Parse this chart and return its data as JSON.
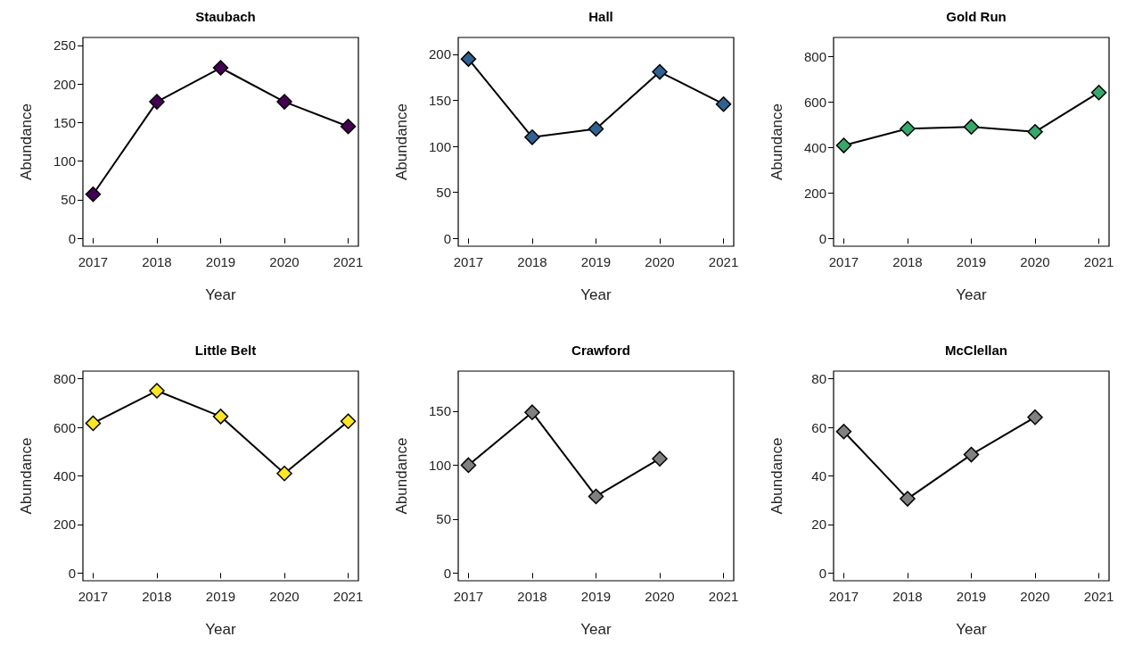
{
  "chart_data": [
    {
      "type": "line",
      "title": "Staubach",
      "xlabel": "Year",
      "ylabel": "Abundance",
      "x": [
        2017,
        2018,
        2019,
        2020,
        2021
      ],
      "xlim": [
        2016.84,
        2021.16
      ],
      "xticks": [
        2017,
        2018,
        2019,
        2020,
        2021
      ],
      "ylim": [
        -10.4,
        260.4
      ],
      "yticks": [
        0,
        50,
        100,
        150,
        200,
        250
      ],
      "marker": "diamond",
      "line_style": "solid",
      "grid": false,
      "series": [
        {
          "color": "#440154",
          "values": [
            57,
            177,
            221,
            177,
            145
          ]
        }
      ]
    },
    {
      "type": "line",
      "title": "Hall",
      "xlabel": "Year",
      "ylabel": "Abundance",
      "x": [
        2017,
        2018,
        2019,
        2020,
        2021
      ],
      "xlim": [
        2016.84,
        2021.16
      ],
      "xticks": [
        2017,
        2018,
        2019,
        2020,
        2021
      ],
      "ylim": [
        -8.4,
        218.4
      ],
      "yticks": [
        0,
        50,
        100,
        150,
        200
      ],
      "marker": "diamond",
      "line_style": "solid",
      "grid": false,
      "series": [
        {
          "color": "#2f6191",
          "values": [
            195,
            110,
            119,
            181,
            146
          ]
        }
      ]
    },
    {
      "type": "line",
      "title": "Gold Run",
      "xlabel": "Year",
      "ylabel": "Abundance",
      "x": [
        2017,
        2018,
        2019,
        2020,
        2021
      ],
      "xlim": [
        2016.84,
        2021.16
      ],
      "xticks": [
        2017,
        2018,
        2019,
        2020,
        2021
      ],
      "ylim": [
        -34,
        884
      ],
      "yticks": [
        0,
        200,
        400,
        600,
        800
      ],
      "marker": "diamond",
      "line_style": "solid",
      "grid": false,
      "series": [
        {
          "color": "#35a86a",
          "values": [
            409,
            483,
            491,
            469,
            642
          ]
        }
      ]
    },
    {
      "type": "line",
      "title": "Little Belt",
      "xlabel": "Year",
      "ylabel": "Abundance",
      "x": [
        2017,
        2018,
        2019,
        2020,
        2021
      ],
      "xlim": [
        2016.84,
        2021.16
      ],
      "xticks": [
        2017,
        2018,
        2019,
        2020,
        2021
      ],
      "ylim": [
        -32,
        832
      ],
      "yticks": [
        0,
        200,
        400,
        600,
        800
      ],
      "marker": "diamond",
      "line_style": "solid",
      "grid": false,
      "series": [
        {
          "color": "#fde725",
          "values": [
            617,
            751,
            645,
            410,
            625
          ]
        }
      ]
    },
    {
      "type": "line",
      "title": "Crawford",
      "xlabel": "Year",
      "ylabel": "Abundance",
      "x": [
        2017,
        2018,
        2019,
        2020
      ],
      "xlim": [
        2016.84,
        2021.16
      ],
      "xticks": [
        2017,
        2018,
        2019,
        2020,
        2021
      ],
      "ylim": [
        -7.2,
        187.2
      ],
      "yticks": [
        0,
        50,
        100,
        150
      ],
      "marker": "diamond",
      "line_style": "solid",
      "grid": false,
      "series": [
        {
          "color": "#808080",
          "values": [
            100,
            149,
            71,
            106
          ]
        }
      ]
    },
    {
      "type": "line",
      "title": "McClellan",
      "xlabel": "Year",
      "ylabel": "Abundance",
      "x": [
        2017,
        2018,
        2019,
        2020
      ],
      "xlim": [
        2016.84,
        2021.16
      ],
      "xticks": [
        2017,
        2018,
        2019,
        2020,
        2021
      ],
      "ylim": [
        -3.2,
        83.2
      ],
      "yticks": [
        0,
        20,
        40,
        60,
        80
      ],
      "marker": "diamond",
      "line_style": "solid",
      "grid": false,
      "series": [
        {
          "color": "#808080",
          "values": [
            58.3,
            30.6,
            48.8,
            64.2
          ]
        }
      ]
    }
  ]
}
